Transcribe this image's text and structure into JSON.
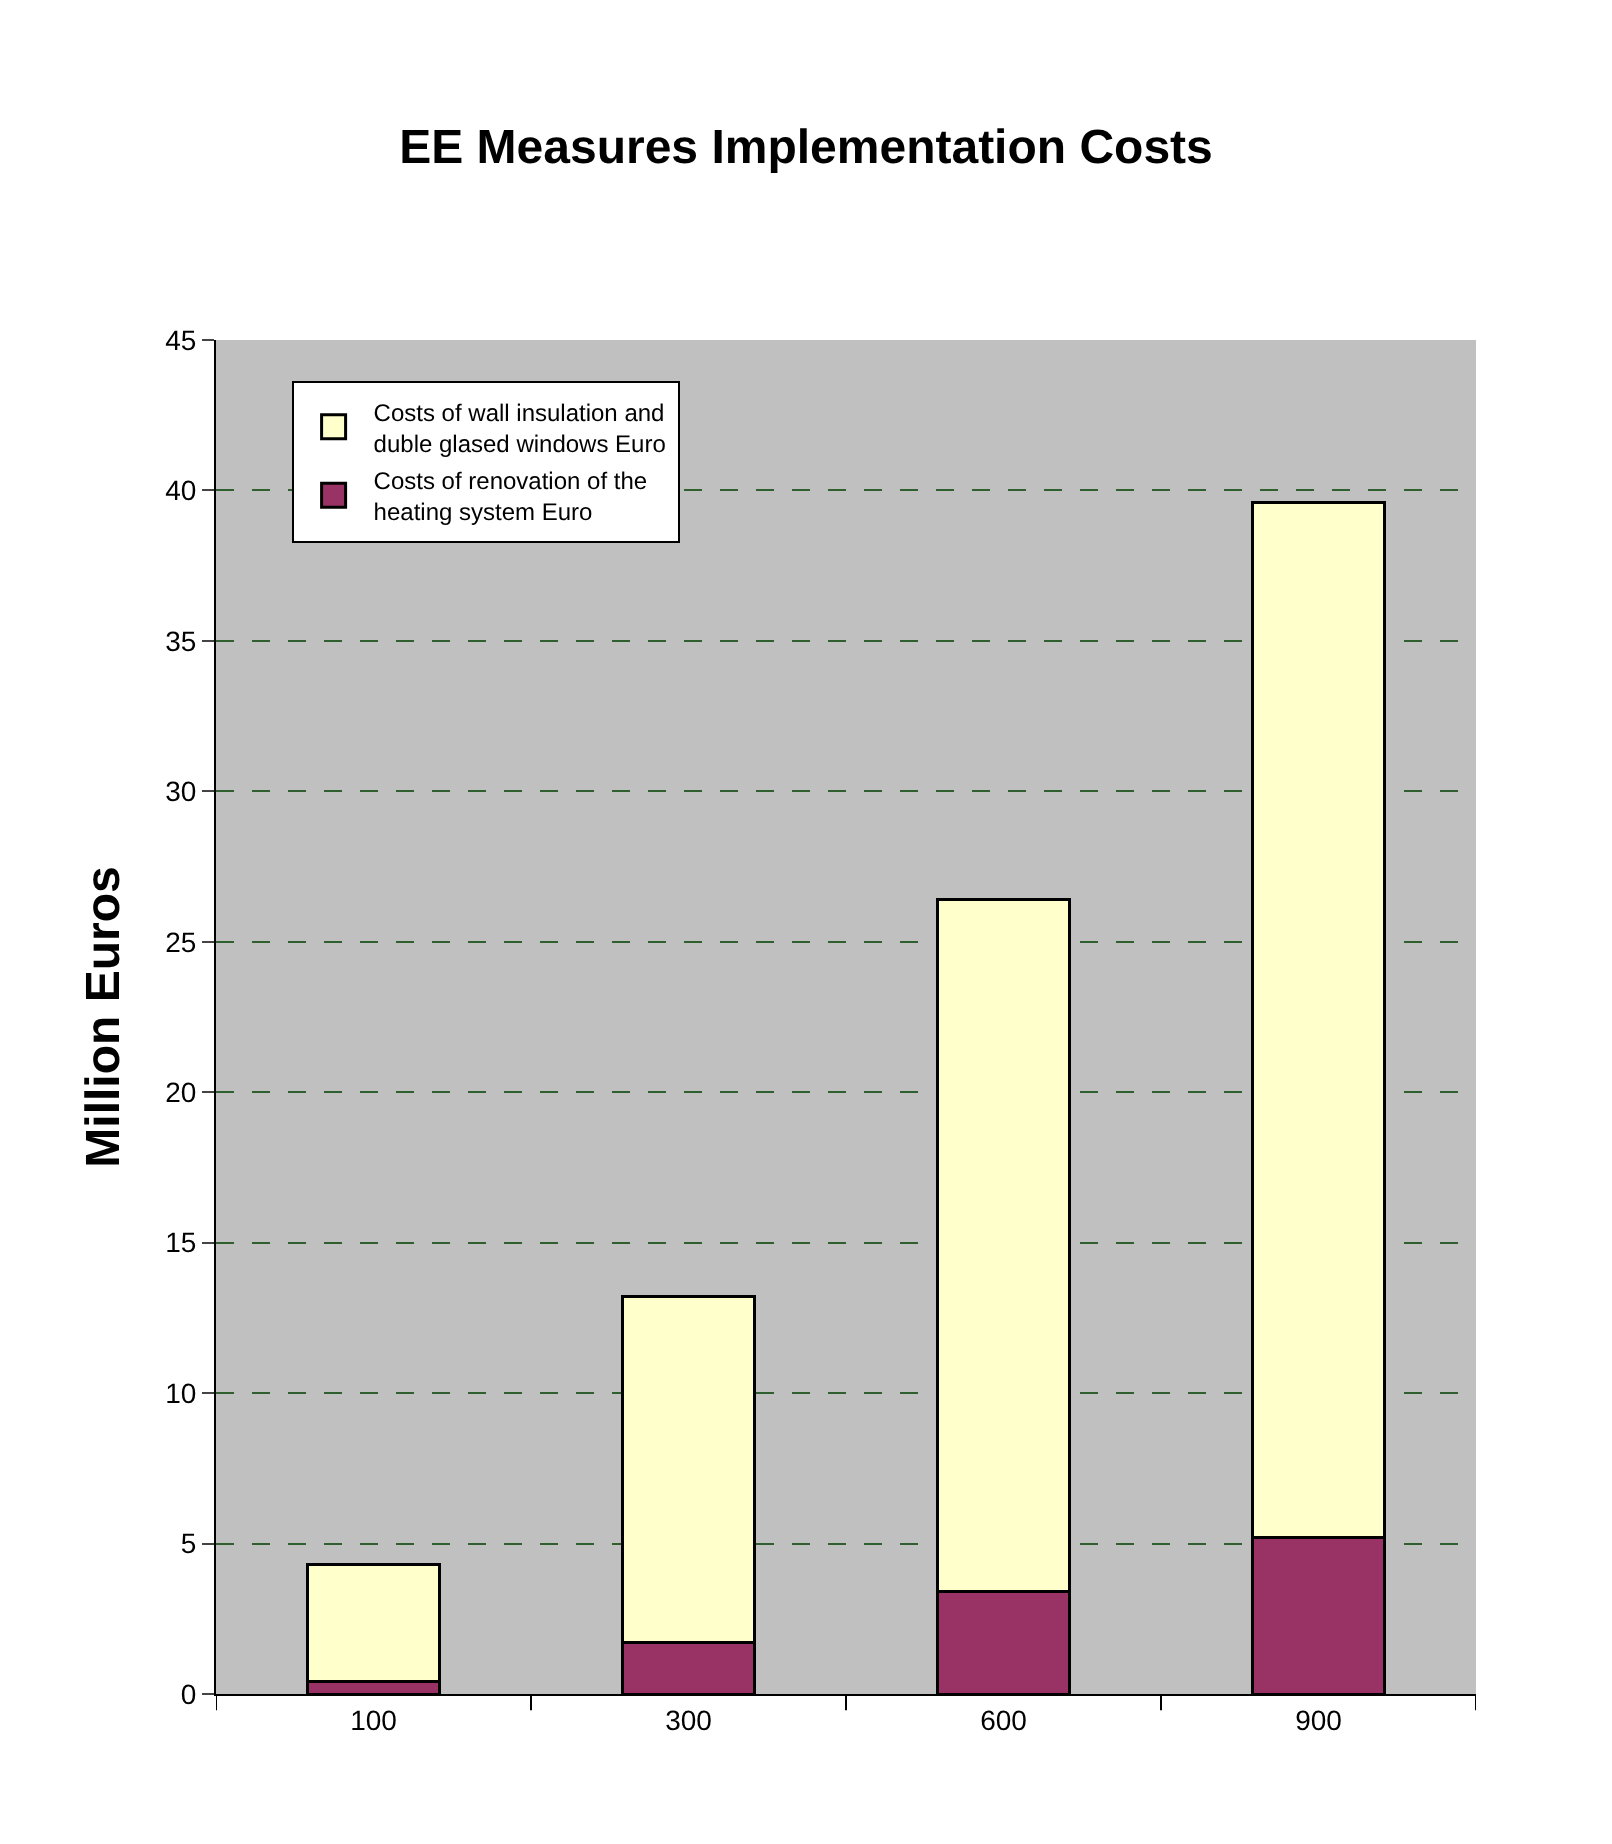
{
  "chart_data": {
    "type": "bar",
    "title": "EE Measures Implementation Costs",
    "ylabel": "Million Euros",
    "categories": [
      "100",
      "300",
      "600",
      "900"
    ],
    "stacked": true,
    "series": [
      {
        "name": "Costs of renovation of the heating system Euro",
        "color": "#993366",
        "values": [
          0.4,
          1.7,
          3.4,
          5.2
        ]
      },
      {
        "name": "Costs of wall insulation and duble glased windows Euro",
        "color": "#ffffcc",
        "values": [
          3.9,
          11.5,
          23.0,
          34.4
        ]
      }
    ],
    "ylim": [
      0,
      45
    ],
    "yticks": [
      0,
      5,
      10,
      15,
      20,
      25,
      30,
      35,
      40,
      45
    ],
    "grid": "y",
    "legend": "top left"
  }
}
